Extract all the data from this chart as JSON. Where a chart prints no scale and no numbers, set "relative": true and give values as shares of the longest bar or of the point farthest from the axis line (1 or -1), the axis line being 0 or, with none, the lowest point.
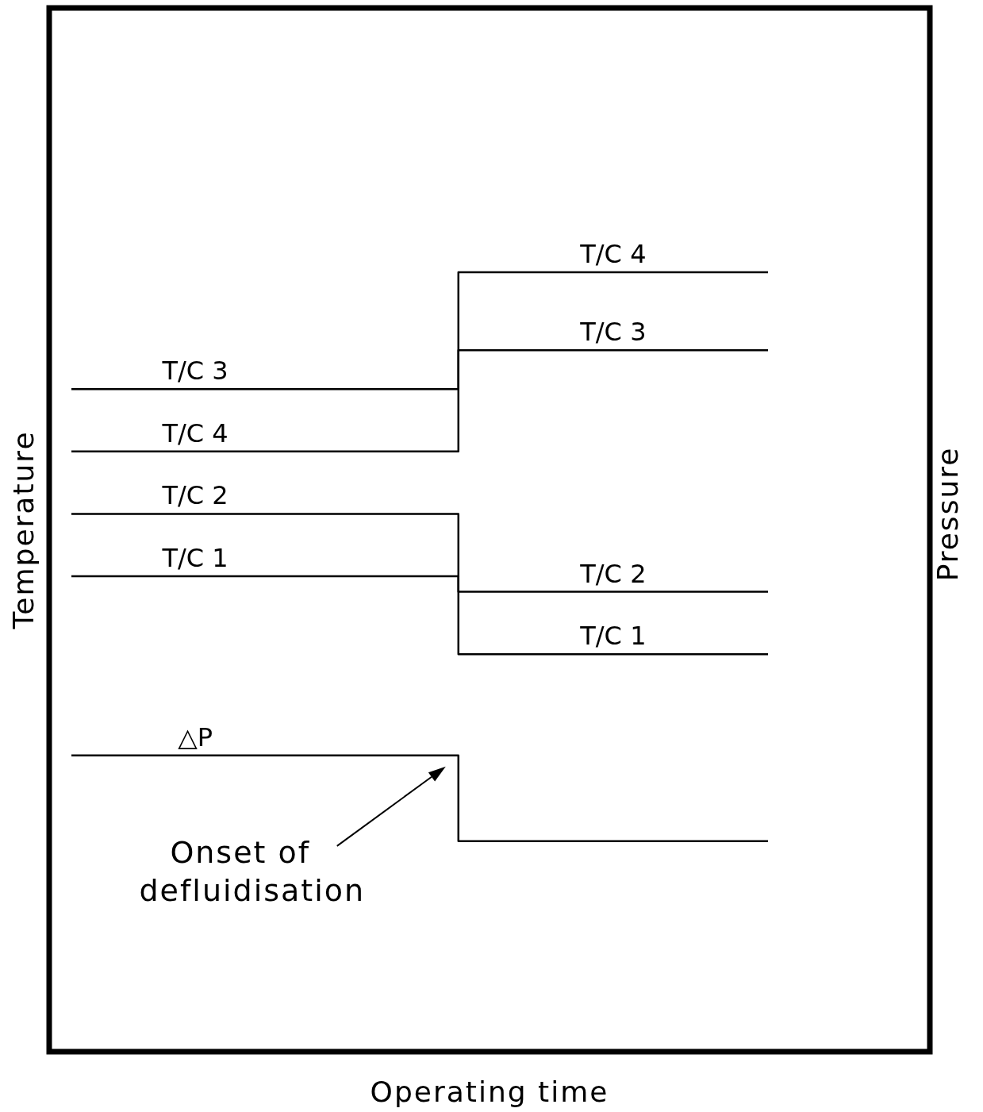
{
  "chart_data": {
    "type": "step",
    "relative": true,
    "xlabel": "Operating time",
    "ylabel": "Temperature",
    "y2label": "Pressure",
    "categories": [
      null,
      null,
      null,
      null,
      null,
      null,
      null,
      null,
      null,
      null
    ],
    "series": [
      {
        "name": "T/C 3",
        "color": "#000000",
        "values": [
          0.85,
          0.85,
          0.85,
          0.85,
          0.85,
          0.9,
          0.9,
          0.9,
          0.9,
          0.9
        ]
      },
      {
        "name": "T/C 4",
        "color": "#000000",
        "values": [
          0.77,
          0.77,
          0.77,
          0.77,
          0.77,
          1,
          1,
          1,
          1,
          1
        ]
      },
      {
        "name": "T/C 2",
        "color": "#000000",
        "values": [
          0.69,
          0.69,
          0.69,
          0.69,
          0.69,
          0.59,
          0.59,
          0.59,
          0.59,
          0.59
        ]
      },
      {
        "name": "T/C 1",
        "color": "#000000",
        "values": [
          0.61,
          0.61,
          0.61,
          0.61,
          0.61,
          0.51,
          0.51,
          0.51,
          0.51,
          0.51
        ]
      },
      {
        "name": "△P",
        "color": "#000000",
        "values": [
          0.38,
          0.38,
          0.38,
          0.38,
          0.38,
          0.27,
          0.27,
          0.27,
          0.27,
          0.27
        ]
      }
    ],
    "annotations": [
      {
        "text": "Onset of defluidisation",
        "y": 0.38
      },
      {
        "text": "T/C 4",
        "y": 1
      },
      {
        "text": "T/C 3",
        "y": 0.9
      },
      {
        "text": "T/C 2",
        "y": 0.59
      },
      {
        "text": "T/C 1",
        "y": 0.51
      }
    ]
  }
}
